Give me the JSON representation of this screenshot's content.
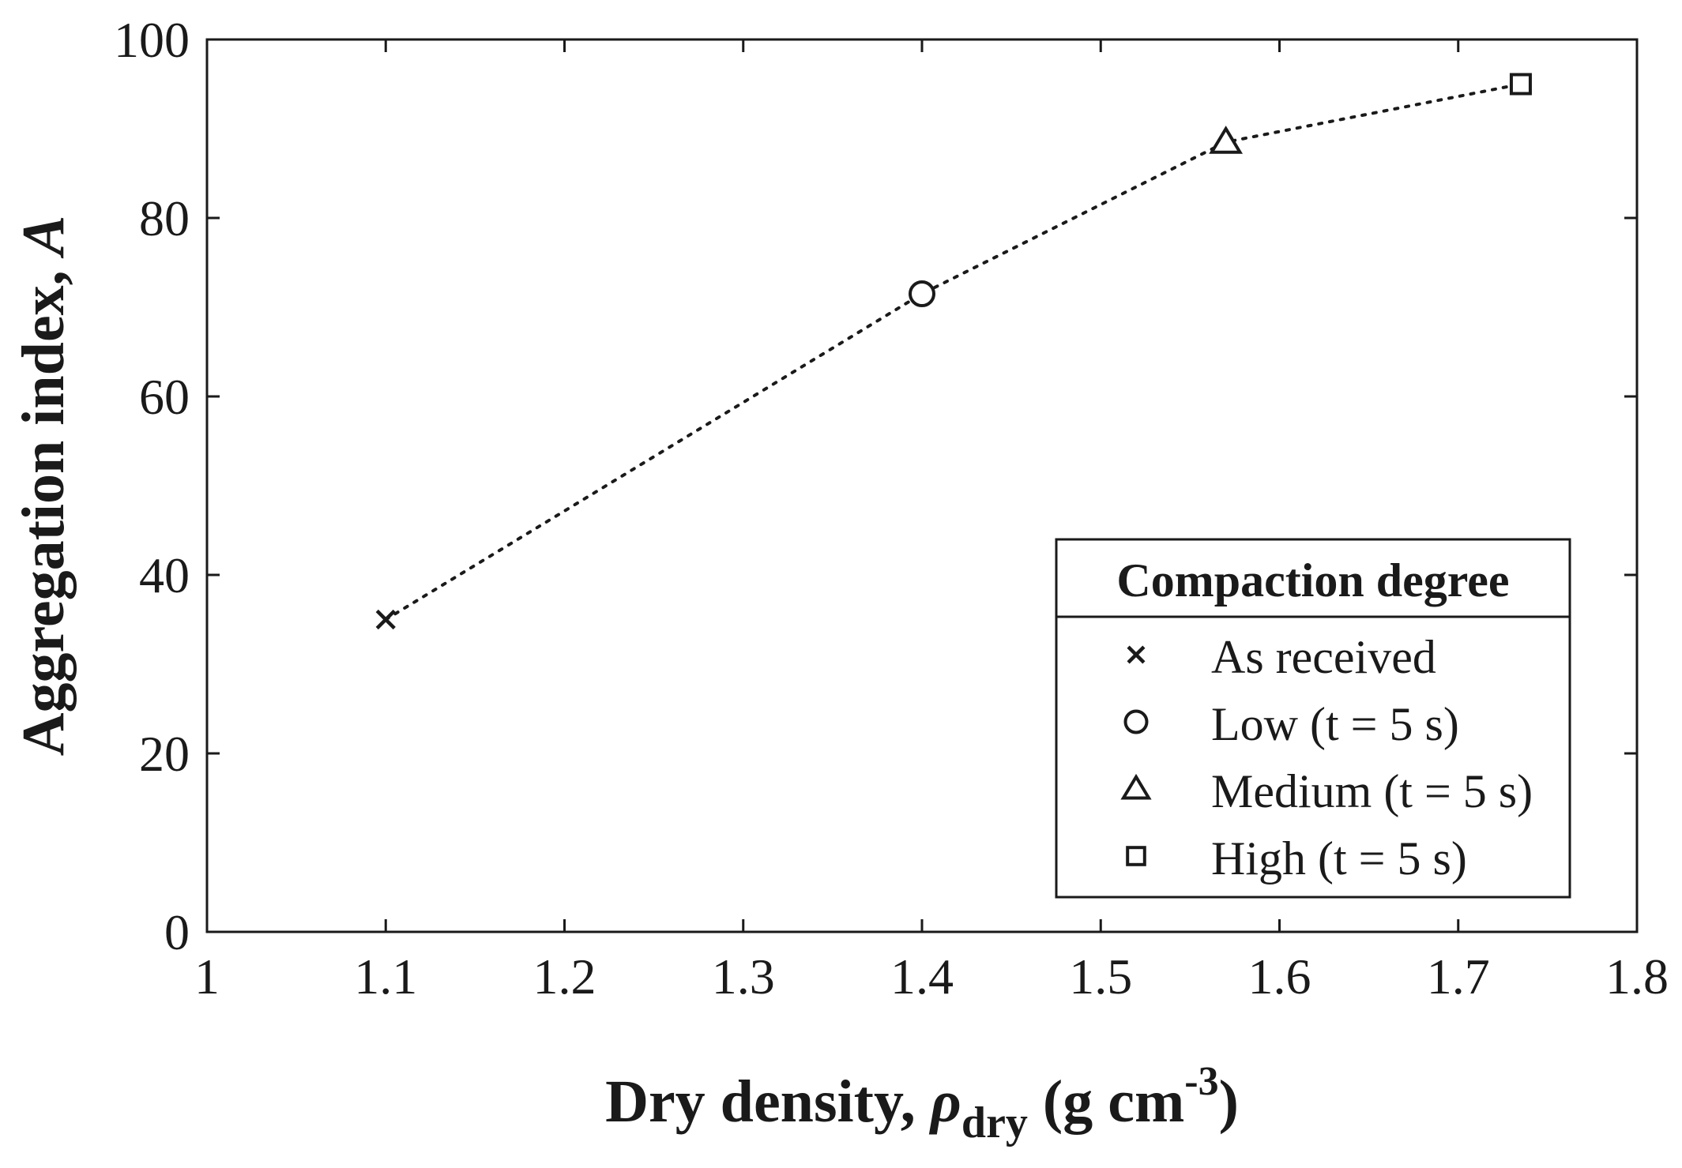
{
  "chart_data": {
    "type": "scatter",
    "xlabel": {
      "prefix": "Dry density, ",
      "symbol": "ρ",
      "subscript": "dry",
      "unit_open": " (g cm",
      "superscript": "-3",
      "unit_close": ")"
    },
    "ylabel": {
      "text": "Aggregation index, ",
      "symbol": "A"
    },
    "xlim": [
      1,
      1.8
    ],
    "ylim": [
      0,
      100
    ],
    "xticks": [
      1,
      1.1,
      1.2,
      1.3,
      1.4,
      1.5,
      1.6,
      1.7,
      1.8
    ],
    "xtick_labels": [
      "1",
      "1.1",
      "1.2",
      "1.3",
      "1.4",
      "1.5",
      "1.6",
      "1.7",
      "1.8"
    ],
    "yticks": [
      0,
      20,
      40,
      60,
      80,
      100
    ],
    "ytick_labels": [
      "0",
      "20",
      "40",
      "60",
      "80",
      "100"
    ],
    "grid": false,
    "line_style": "dotted",
    "line_color": "#1a1a1a",
    "series": [
      {
        "name": "As received",
        "marker": "x",
        "x": 1.1,
        "y": 35
      },
      {
        "name": "Low (t = 5 s)",
        "marker": "circle",
        "x": 1.4,
        "y": 71.5
      },
      {
        "name": "Medium (t = 5 s)",
        "marker": "triangle",
        "x": 1.57,
        "y": 88.5
      },
      {
        "name": "High (t = 5 s)",
        "marker": "square",
        "x": 1.735,
        "y": 95
      }
    ],
    "legend": {
      "title": "Compaction degree",
      "placement": "lower-right"
    }
  }
}
